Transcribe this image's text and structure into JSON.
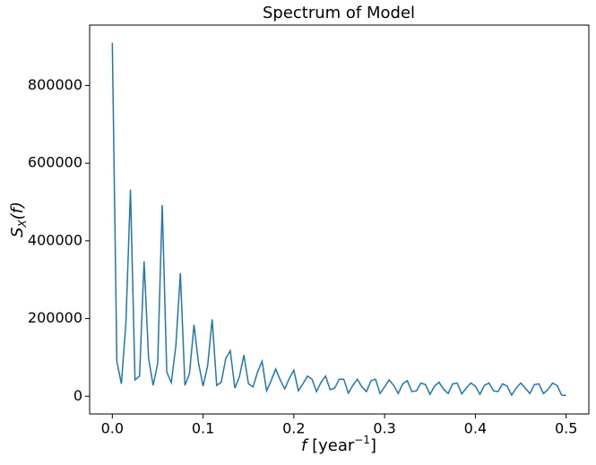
{
  "chart_data": {
    "type": "line",
    "title": "Spectrum of Model",
    "xlabel": {
      "var": "f",
      "unit": " [year",
      "sup": "−1",
      "close": "]"
    },
    "ylabel": {
      "base": "S",
      "sub": "X",
      "rest": "(f)"
    },
    "x": [
      0,
      0.005,
      0.01,
      0.015,
      0.02,
      0.025,
      0.03,
      0.035,
      0.04,
      0.045,
      0.05,
      0.055,
      0.06,
      0.065,
      0.07,
      0.075,
      0.08,
      0.085,
      0.09,
      0.095,
      0.1,
      0.105,
      0.11,
      0.115,
      0.12,
      0.125,
      0.13,
      0.135,
      0.14,
      0.145,
      0.15,
      0.155,
      0.16,
      0.165,
      0.17,
      0.175,
      0.18,
      0.185,
      0.19,
      0.195,
      0.2,
      0.205,
      0.21,
      0.215,
      0.22,
      0.225,
      0.23,
      0.235,
      0.24,
      0.245,
      0.25,
      0.255,
      0.26,
      0.265,
      0.27,
      0.275,
      0.28,
      0.285,
      0.29,
      0.295,
      0.3,
      0.305,
      0.31,
      0.315,
      0.32,
      0.325,
      0.33,
      0.335,
      0.34,
      0.345,
      0.35,
      0.355,
      0.36,
      0.365,
      0.37,
      0.375,
      0.38,
      0.385,
      0.39,
      0.395,
      0.4,
      0.405,
      0.41,
      0.415,
      0.42,
      0.425,
      0.43,
      0.435,
      0.44,
      0.445,
      0.45,
      0.455,
      0.46,
      0.465,
      0.47,
      0.475,
      0.48,
      0.485,
      0.49,
      0.495,
      0.5
    ],
    "series": [
      {
        "color": "#1f77b4",
        "values": [
          910000,
          90000,
          32000,
          190000,
          532000,
          42000,
          52000,
          347000,
          97000,
          28000,
          85000,
          492000,
          62000,
          35000,
          130000,
          317000,
          28000,
          58000,
          184000,
          85000,
          26000,
          78000,
          198000,
          28000,
          36000,
          97000,
          117000,
          21000,
          50000,
          106000,
          32000,
          24000,
          62000,
          90000,
          14000,
          40000,
          70000,
          42000,
          19000,
          46000,
          67000,
          14000,
          32000,
          52000,
          44000,
          12000,
          36000,
          52000,
          17000,
          21000,
          44000,
          44000,
          8000,
          28000,
          44000,
          24000,
          12000,
          40000,
          44000,
          7000,
          24000,
          42000,
          28000,
          7000,
          32000,
          40000,
          12000,
          14000,
          34000,
          30000,
          5000,
          26000,
          36000,
          18000,
          7000,
          32000,
          34000,
          6000,
          21000,
          34000,
          26000,
          5000,
          28000,
          34000,
          14000,
          12000,
          32000,
          26000,
          3000,
          21000,
          34000,
          21000,
          7000,
          30000,
          32000,
          7000,
          17000,
          34000,
          28000,
          3000,
          2000
        ]
      }
    ],
    "xlim": [
      -0.025,
      0.525
    ],
    "ylim": [
      -45500,
      955500
    ],
    "xticks": [
      {
        "value": 0,
        "label": "0.0"
      },
      {
        "value": 0.1,
        "label": "0.1"
      },
      {
        "value": 0.2,
        "label": "0.2"
      },
      {
        "value": 0.3,
        "label": "0.3"
      },
      {
        "value": 0.4,
        "label": "0.4"
      },
      {
        "value": 0.5,
        "label": "0.5"
      }
    ],
    "yticks": [
      0,
      200000,
      400000,
      600000,
      800000
    ]
  }
}
